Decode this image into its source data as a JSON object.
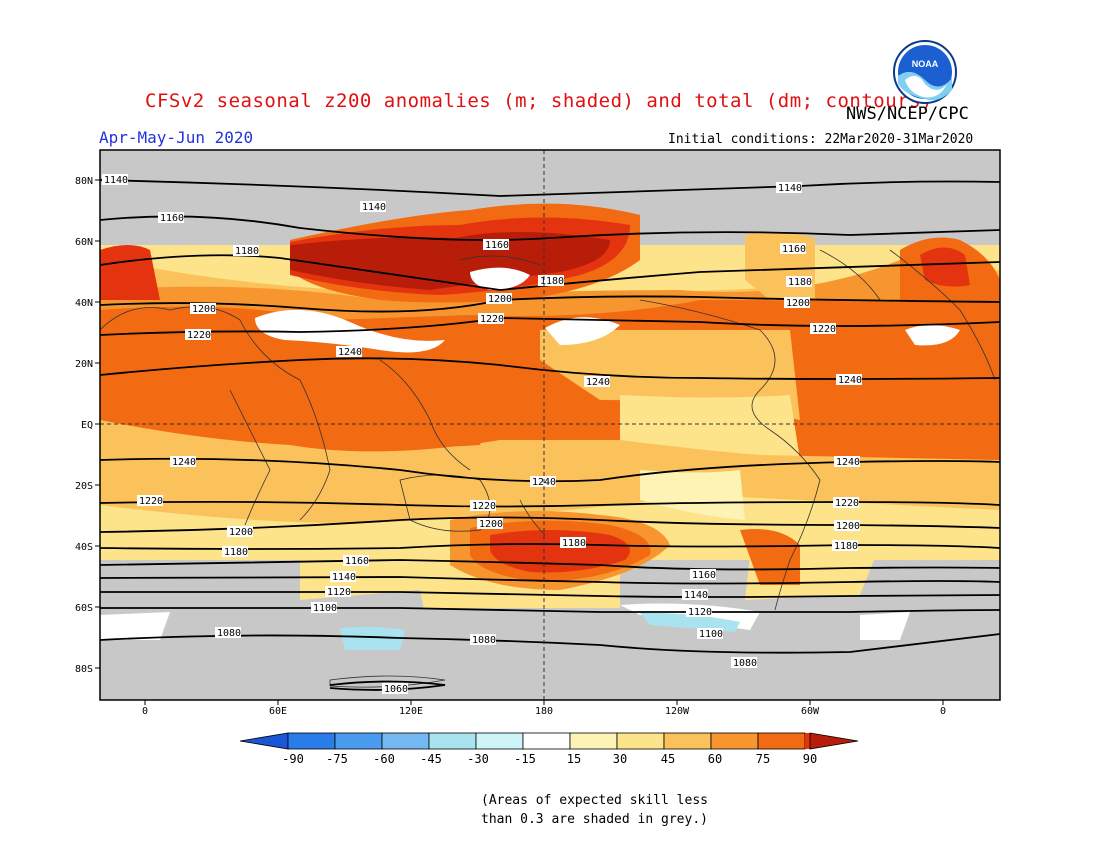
{
  "header": {
    "title": "CFSv2 seasonal z200 anomalies (m; shaded) and total (dm; contours)",
    "agency": "NWS/NCEP/CPC",
    "period": "Apr-May-Jun 2020",
    "initial_conditions": "Initial conditions: 22Mar2020-31Mar2020",
    "logo_text": "NOAA"
  },
  "map": {
    "lat_labels": [
      "80N",
      "60N",
      "40N",
      "20N",
      "EQ",
      "20S",
      "40S",
      "60S",
      "80S"
    ],
    "lon_labels": [
      "0",
      "60E",
      "120E",
      "180",
      "120W",
      "60W",
      "0"
    ],
    "colors": {
      "grey": "#c8c8c8",
      "ocean_base": "#fde38a",
      "yellow_light": "#fdf3b5",
      "yellow": "#fde38a",
      "orange_light": "#fbc25b",
      "orange": "#f7962e",
      "orange_dark": "#f26a12",
      "red": "#e3340f",
      "dark_red": "#b81d0a",
      "blue_light": "#a9e3f0",
      "white": "#ffffff"
    },
    "contours": [
      {
        "label": "1140"
      },
      {
        "label": "1160"
      },
      {
        "label": "1180"
      },
      {
        "label": "1200"
      },
      {
        "label": "1220"
      },
      {
        "label": "1240"
      },
      {
        "label": "1240"
      },
      {
        "label": "1220"
      },
      {
        "label": "1200"
      },
      {
        "label": "1180"
      },
      {
        "label": "1160"
      },
      {
        "label": "1140"
      },
      {
        "label": "1120"
      },
      {
        "label": "1100"
      },
      {
        "label": "1080"
      },
      {
        "label": "1060"
      }
    ]
  },
  "colorbar": {
    "labels": [
      "-90",
      "-75",
      "-60",
      "-45",
      "-30",
      "-15",
      "15",
      "30",
      "45",
      "60",
      "75",
      "90"
    ],
    "colors": [
      "#1a56d6",
      "#2a7de8",
      "#4a9cef",
      "#74b8f2",
      "#a9e3f0",
      "#cdf4f7",
      "#ffffff",
      "#fdf3b5",
      "#fde38a",
      "#fbc25b",
      "#f7962e",
      "#f26a12",
      "#e3340f",
      "#b81d0a"
    ]
  },
  "footnote": {
    "line1": "(Areas of expected skill less",
    "line2": "than 0.3 are shaded in grey.)"
  }
}
